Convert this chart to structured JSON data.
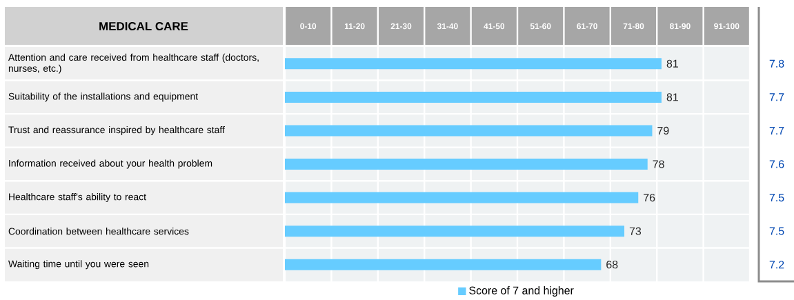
{
  "chart_data": {
    "type": "bar",
    "orientation": "horizontal",
    "title": "MEDICAL CARE",
    "categories": [
      "Attention and care received from healthcare staff (doctors, nurses, etc.)",
      "Suitability of the installations and equipment",
      "Trust and reassurance inspired by healthcare staff",
      "Information received about your health problem",
      "Healthcare staff's ability to react",
      "Coordination between healthcare services",
      "Waiting time until you were seen"
    ],
    "series": [
      {
        "name": "Score of 7 and higher",
        "color": "#66ccff",
        "values": [
          81,
          81,
          79,
          78,
          76,
          73,
          68
        ]
      }
    ],
    "xlim": [
      0,
      100
    ],
    "grid": "x",
    "legend": "bottom",
    "data_labels": true,
    "xticks": [
      {
        "value": 0,
        "label": null
      },
      {
        "value": 10,
        "label": null
      },
      {
        "value": 20,
        "label": null
      },
      {
        "value": 30,
        "label": null
      },
      {
        "value": 40,
        "label": null
      },
      {
        "value": 50,
        "label": null
      },
      {
        "value": 60,
        "label": null
      },
      {
        "value": 70,
        "label": null
      },
      {
        "value": 80,
        "label": null
      },
      {
        "value": 90,
        "label": null
      },
      {
        "value": 100,
        "label": null
      }
    ],
    "tick_labels": "y",
    "annotations": [
      "0-10",
      "11-20",
      "21-30",
      "31-40",
      "41-50",
      "51-60",
      "61-70",
      "71-80",
      "81-90",
      "91-100",
      "7.8",
      "7.7",
      "7.7",
      "7.6",
      "7.5",
      "7.5",
      "7.2"
    ]
  }
}
